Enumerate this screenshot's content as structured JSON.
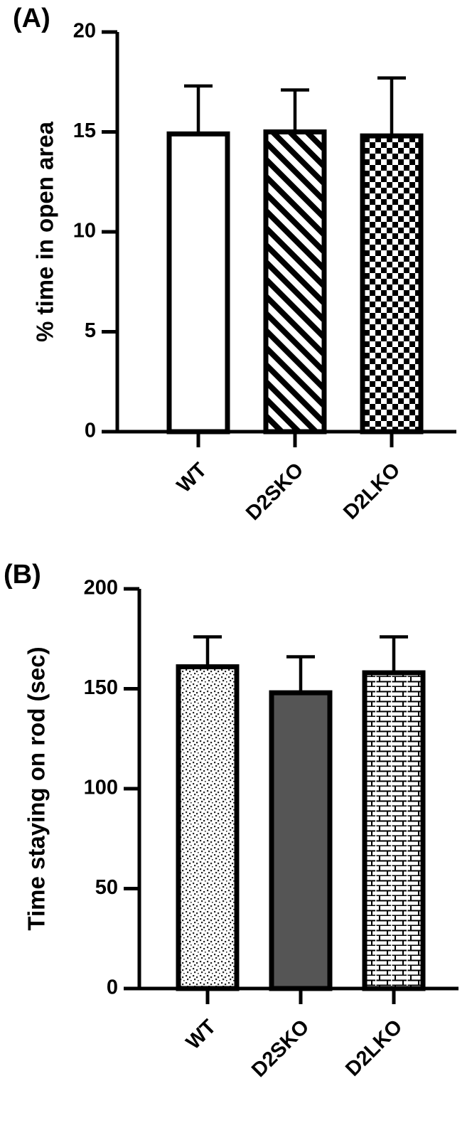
{
  "chart_data": [
    {
      "panel_label": "(A)",
      "type": "bar",
      "categories": [
        "WT",
        "D2SKO",
        "D2LKO"
      ],
      "values": [
        14.9,
        15.0,
        14.8
      ],
      "errors": [
        2.4,
        2.1,
        2.9
      ],
      "patterns": [
        "open",
        "diagonal-stripes",
        "checkerboard"
      ],
      "ylabel": "% time in open area",
      "ylim": [
        0,
        20
      ],
      "yticks": [
        0,
        5,
        10,
        15,
        20
      ],
      "grid": false,
      "legend": "none"
    },
    {
      "panel_label": "(B)",
      "type": "bar",
      "categories": [
        "WT",
        "D2SKO",
        "D2LKO"
      ],
      "values": [
        161,
        148,
        158
      ],
      "errors": [
        15,
        18,
        18
      ],
      "patterns": [
        "dotted",
        "solid-gray",
        "brick"
      ],
      "fill_colors": [
        "#ffffff",
        "#555555",
        "#ffffff"
      ],
      "ylabel": "Time staying on rod (sec)",
      "ylim": [
        0,
        200
      ],
      "yticks": [
        0,
        50,
        100,
        150,
        200
      ],
      "grid": false,
      "legend": "none"
    }
  ]
}
